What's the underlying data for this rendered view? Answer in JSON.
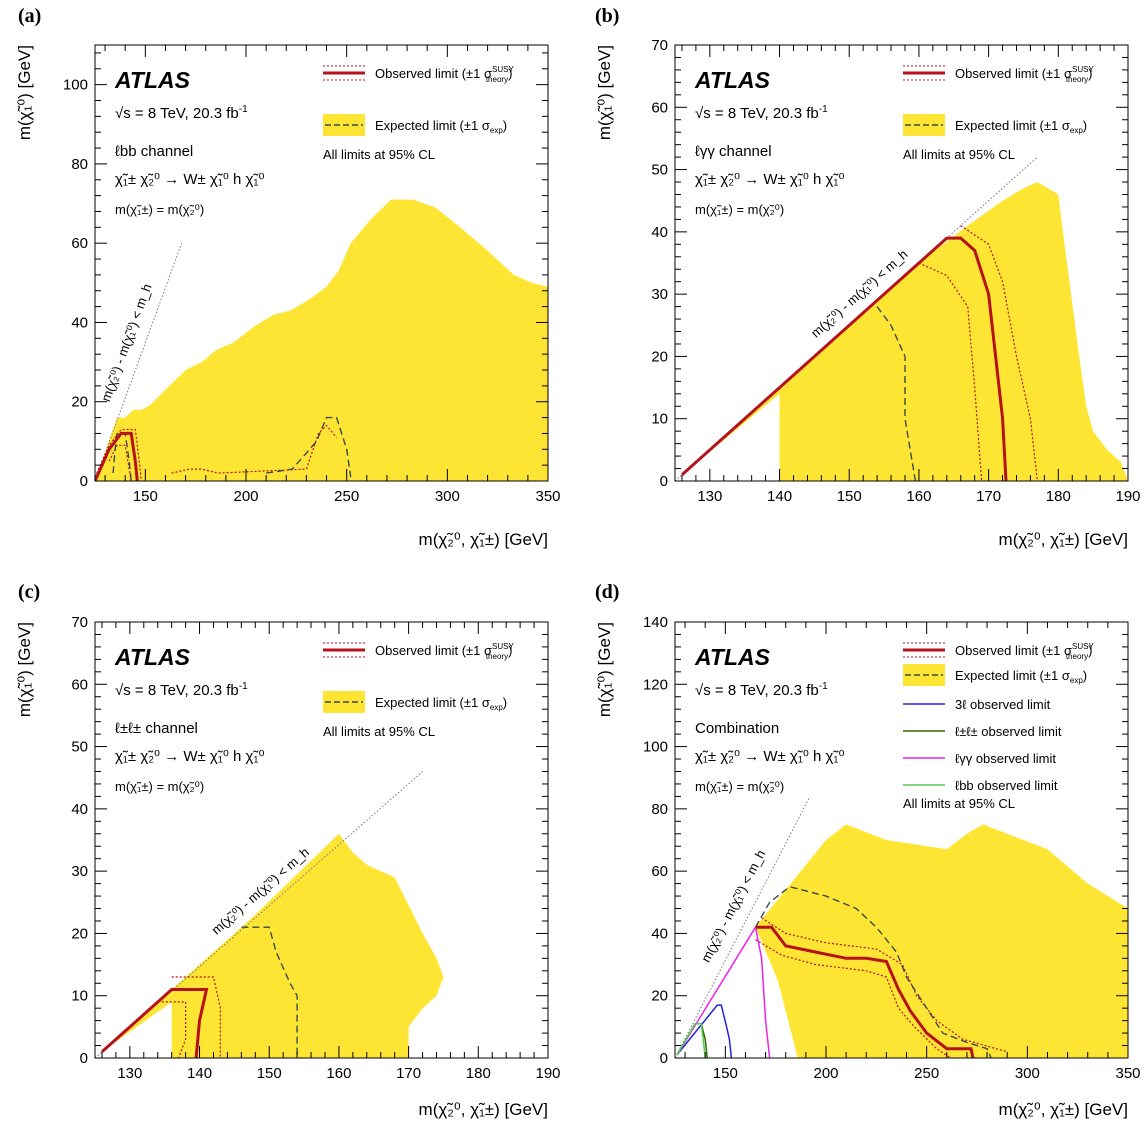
{
  "figure": {
    "experiment": "ATLAS",
    "energy": "√s = 8 TeV, 20.3 fb",
    "lumi_sup": "-1",
    "cl_note": "All limits at 95% CL",
    "legend": {
      "observed": "Observed limit (±1 σ",
      "observed_sup": "SUSY",
      "observed_sub": "theory",
      "expected": "Expected limit (±1 σ",
      "expected_sub": "exp"
    },
    "process": "χ̃₁± χ̃₂⁰ → W± χ̃₁⁰ h χ̃₁⁰",
    "mass_relation": "m(χ̃₁±) = m(χ̃₂⁰)",
    "kinematic_label": "m(χ̃₂⁰) - m(χ̃₁⁰) < m_h",
    "x_axis_title": "m(χ̃₂⁰, χ̃₁±) [GeV]",
    "y_axis_title": "m(χ̃₁⁰) [GeV]",
    "colors": {
      "expected_band": "#FFE533",
      "observed": "#B5121B",
      "expected": "#3A4A4A",
      "kinematic": "#777777"
    }
  },
  "chart_data": [
    {
      "panel": "(a)",
      "type": "area",
      "channel": "ℓbb channel",
      "xlim": [
        125,
        350
      ],
      "ylim": [
        0,
        110
      ],
      "xticks": [
        150,
        200,
        250,
        300,
        350
      ],
      "yticks": [
        0,
        20,
        40,
        60,
        80,
        100
      ],
      "kinematic_line": [
        [
          125,
          0
        ],
        [
          168,
          60
        ]
      ],
      "expected_band": [
        [
          125,
          0
        ],
        [
          136,
          16
        ],
        [
          140,
          16
        ],
        [
          144,
          18
        ],
        [
          148,
          18
        ],
        [
          152,
          19
        ],
        [
          158,
          22
        ],
        [
          164,
          25
        ],
        [
          170,
          28
        ],
        [
          178,
          30
        ],
        [
          185,
          33
        ],
        [
          194,
          35
        ],
        [
          204,
          39
        ],
        [
          214,
          42
        ],
        [
          222,
          43
        ],
        [
          232,
          46
        ],
        [
          240,
          49
        ],
        [
          246,
          53
        ],
        [
          252,
          60
        ],
        [
          262,
          66
        ],
        [
          272,
          71
        ],
        [
          283,
          71
        ],
        [
          294,
          69
        ],
        [
          304,
          65
        ],
        [
          318,
          59
        ],
        [
          333,
          52
        ],
        [
          342,
          50
        ],
        [
          350,
          49
        ],
        [
          350,
          0
        ]
      ],
      "observed": [
        [
          125,
          0
        ],
        [
          132,
          8
        ],
        [
          138,
          12
        ],
        [
          143,
          12
        ],
        [
          145,
          5
        ],
        [
          146,
          0
        ]
      ],
      "expected": [
        [
          134,
          2
        ],
        [
          135,
          8
        ],
        [
          136,
          12
        ],
        [
          140,
          12
        ],
        [
          142,
          5
        ],
        [
          143,
          0
        ]
      ],
      "expected_2": [
        [
          210,
          2
        ],
        [
          223,
          3
        ],
        [
          235,
          10
        ],
        [
          240,
          16
        ],
        [
          245,
          16
        ],
        [
          250,
          8
        ],
        [
          252,
          1
        ]
      ],
      "observed_plus": [
        [
          125,
          1
        ],
        [
          132,
          9
        ],
        [
          138,
          13
        ],
        [
          145,
          13
        ],
        [
          147,
          5
        ],
        [
          148,
          0
        ]
      ],
      "observed_minus": [
        [
          132,
          5
        ],
        [
          136,
          9
        ],
        [
          140,
          9
        ],
        [
          142,
          3
        ],
        [
          143,
          0
        ]
      ],
      "observed_plus_2": [
        [
          163,
          2
        ],
        [
          172,
          3
        ],
        [
          178,
          3
        ],
        [
          186,
          2
        ],
        [
          230,
          3
        ],
        [
          236,
          12
        ],
        [
          240,
          14
        ],
        [
          245,
          11
        ]
      ]
    },
    {
      "panel": "(b)",
      "type": "area",
      "channel": "ℓγγ channel",
      "xlim": [
        125,
        190
      ],
      "ylim": [
        0,
        70
      ],
      "xticks": [
        130,
        140,
        150,
        160,
        170,
        180,
        190
      ],
      "yticks": [
        0,
        10,
        20,
        30,
        40,
        50,
        60,
        70
      ],
      "kinematic_line": [
        [
          125,
          0
        ],
        [
          177,
          52
        ]
      ],
      "expected_band": [
        [
          126,
          1
        ],
        [
          139,
          14
        ],
        [
          160,
          35
        ],
        [
          167,
          41
        ],
        [
          172,
          45
        ],
        [
          175,
          47
        ],
        [
          177,
          48
        ],
        [
          180,
          46
        ],
        [
          181,
          37
        ],
        [
          183,
          20
        ],
        [
          184,
          12
        ],
        [
          185,
          8
        ],
        [
          187,
          5
        ],
        [
          189,
          3
        ],
        [
          190,
          0
        ],
        [
          140,
          0
        ],
        [
          140,
          14
        ]
      ],
      "observed": [
        [
          126,
          1
        ],
        [
          164,
          39
        ],
        [
          166,
          39
        ],
        [
          168,
          37
        ],
        [
          170,
          30
        ],
        [
          171,
          20
        ],
        [
          172,
          10
        ],
        [
          172.5,
          0
        ]
      ],
      "expected": [
        [
          154,
          28
        ],
        [
          156,
          25
        ],
        [
          158,
          20
        ],
        [
          158,
          10
        ],
        [
          159.5,
          0
        ]
      ],
      "observed_plus": [
        [
          166,
          41
        ],
        [
          170,
          38
        ],
        [
          172,
          32
        ],
        [
          174,
          20
        ],
        [
          176,
          10
        ],
        [
          177,
          0
        ]
      ],
      "observed_minus": [
        [
          160,
          35
        ],
        [
          164,
          33
        ],
        [
          167,
          28
        ],
        [
          168,
          15
        ],
        [
          169,
          0
        ]
      ]
    },
    {
      "panel": "(c)",
      "type": "area",
      "channel": "ℓ±ℓ± channel",
      "xlim": [
        125,
        190
      ],
      "ylim": [
        0,
        70
      ],
      "xticks": [
        130,
        140,
        150,
        160,
        170,
        180,
        190
      ],
      "yticks": [
        0,
        10,
        20,
        30,
        40,
        50,
        60,
        70
      ],
      "kinematic_line": [
        [
          125,
          0
        ],
        [
          172,
          46
        ]
      ],
      "expected_band": [
        [
          126,
          1
        ],
        [
          137,
          12
        ],
        [
          148,
          23
        ],
        [
          160,
          36
        ],
        [
          162,
          33
        ],
        [
          164,
          31
        ],
        [
          168,
          29
        ],
        [
          172,
          20
        ],
        [
          174,
          16
        ],
        [
          175,
          13
        ],
        [
          174,
          10
        ],
        [
          172,
          8
        ],
        [
          170,
          5
        ],
        [
          170,
          0
        ],
        [
          136,
          0
        ],
        [
          136,
          9
        ]
      ],
      "observed": [
        [
          126,
          1
        ],
        [
          136,
          11
        ],
        [
          141,
          11
        ],
        [
          140,
          6
        ],
        [
          139.5,
          0
        ]
      ],
      "expected": [
        [
          146,
          21
        ],
        [
          150,
          21
        ],
        [
          151,
          17
        ],
        [
          153,
          12
        ],
        [
          154,
          10
        ],
        [
          154,
          0
        ]
      ],
      "observed_plus": [
        [
          136,
          13
        ],
        [
          142,
          13
        ],
        [
          143,
          8
        ],
        [
          143,
          0
        ]
      ],
      "observed_minus": [
        [
          134,
          9
        ],
        [
          138,
          9
        ],
        [
          138,
          3
        ],
        [
          137,
          0
        ]
      ]
    },
    {
      "panel": "(d)",
      "type": "area",
      "channel": "Combination",
      "xlim": [
        125,
        350
      ],
      "ylim": [
        0,
        140
      ],
      "xticks": [
        150,
        200,
        250,
        300,
        350
      ],
      "yticks": [
        0,
        20,
        40,
        60,
        80,
        100,
        120,
        140
      ],
      "legend_extra": [
        "3ℓ observed limit",
        "ℓ±ℓ± observed limit",
        "ℓγγ observed limit",
        "ℓbb observed limit"
      ],
      "extra_colors": [
        "#2222DD",
        "#336600",
        "#EE22EE",
        "#55CC55"
      ],
      "kinematic_line": [
        [
          125,
          0
        ],
        [
          192,
          84
        ]
      ],
      "expected_band": [
        [
          126,
          1
        ],
        [
          165,
          42
        ],
        [
          200,
          70
        ],
        [
          210,
          75
        ],
        [
          230,
          70
        ],
        [
          260,
          67
        ],
        [
          270,
          72
        ],
        [
          278,
          75
        ],
        [
          290,
          72
        ],
        [
          310,
          67
        ],
        [
          330,
          56
        ],
        [
          350,
          48
        ],
        [
          350,
          0
        ],
        [
          186,
          0
        ],
        [
          176,
          25
        ],
        [
          165,
          42
        ]
      ],
      "observed": [
        [
          165,
          42
        ],
        [
          173,
          42
        ],
        [
          180,
          36
        ],
        [
          195,
          34
        ],
        [
          210,
          32
        ],
        [
          220,
          32
        ],
        [
          230,
          31
        ],
        [
          236,
          22
        ],
        [
          242,
          15
        ],
        [
          250,
          8
        ],
        [
          260,
          3
        ],
        [
          272,
          3
        ],
        [
          273,
          0
        ]
      ],
      "expected": [
        [
          165,
          42
        ],
        [
          172,
          50
        ],
        [
          182,
          55
        ],
        [
          200,
          52
        ],
        [
          215,
          48
        ],
        [
          225,
          42
        ],
        [
          235,
          34
        ],
        [
          240,
          26
        ],
        [
          250,
          16
        ],
        [
          258,
          8
        ],
        [
          270,
          5
        ],
        [
          280,
          3
        ],
        [
          282,
          0
        ]
      ],
      "observed_plus": [
        [
          168,
          45
        ],
        [
          180,
          40
        ],
        [
          200,
          37
        ],
        [
          225,
          35
        ],
        [
          238,
          30
        ],
        [
          245,
          20
        ],
        [
          255,
          12
        ],
        [
          268,
          6
        ],
        [
          290,
          2
        ]
      ],
      "observed_minus": [
        [
          165,
          38
        ],
        [
          178,
          33
        ],
        [
          195,
          30
        ],
        [
          220,
          28
        ],
        [
          230,
          26
        ],
        [
          236,
          16
        ],
        [
          244,
          10
        ],
        [
          255,
          3
        ],
        [
          262,
          0
        ]
      ],
      "extra_lines": [
        [
          [
            126,
            1
          ],
          [
            146,
            17
          ],
          [
            148,
            17
          ],
          [
            151,
            9
          ],
          [
            152,
            6
          ],
          [
            153,
            0
          ]
        ],
        [
          [
            126,
            1
          ],
          [
            135,
            11
          ],
          [
            138,
            11
          ],
          [
            140,
            6
          ],
          [
            141,
            0
          ]
        ],
        [
          [
            126,
            1
          ],
          [
            165,
            42
          ],
          [
            168,
            32
          ],
          [
            170,
            12
          ],
          [
            172,
            0
          ]
        ],
        [
          [
            126,
            1
          ],
          [
            135,
            11
          ],
          [
            138,
            11
          ],
          [
            139,
            6
          ],
          [
            140,
            0
          ]
        ]
      ]
    }
  ]
}
